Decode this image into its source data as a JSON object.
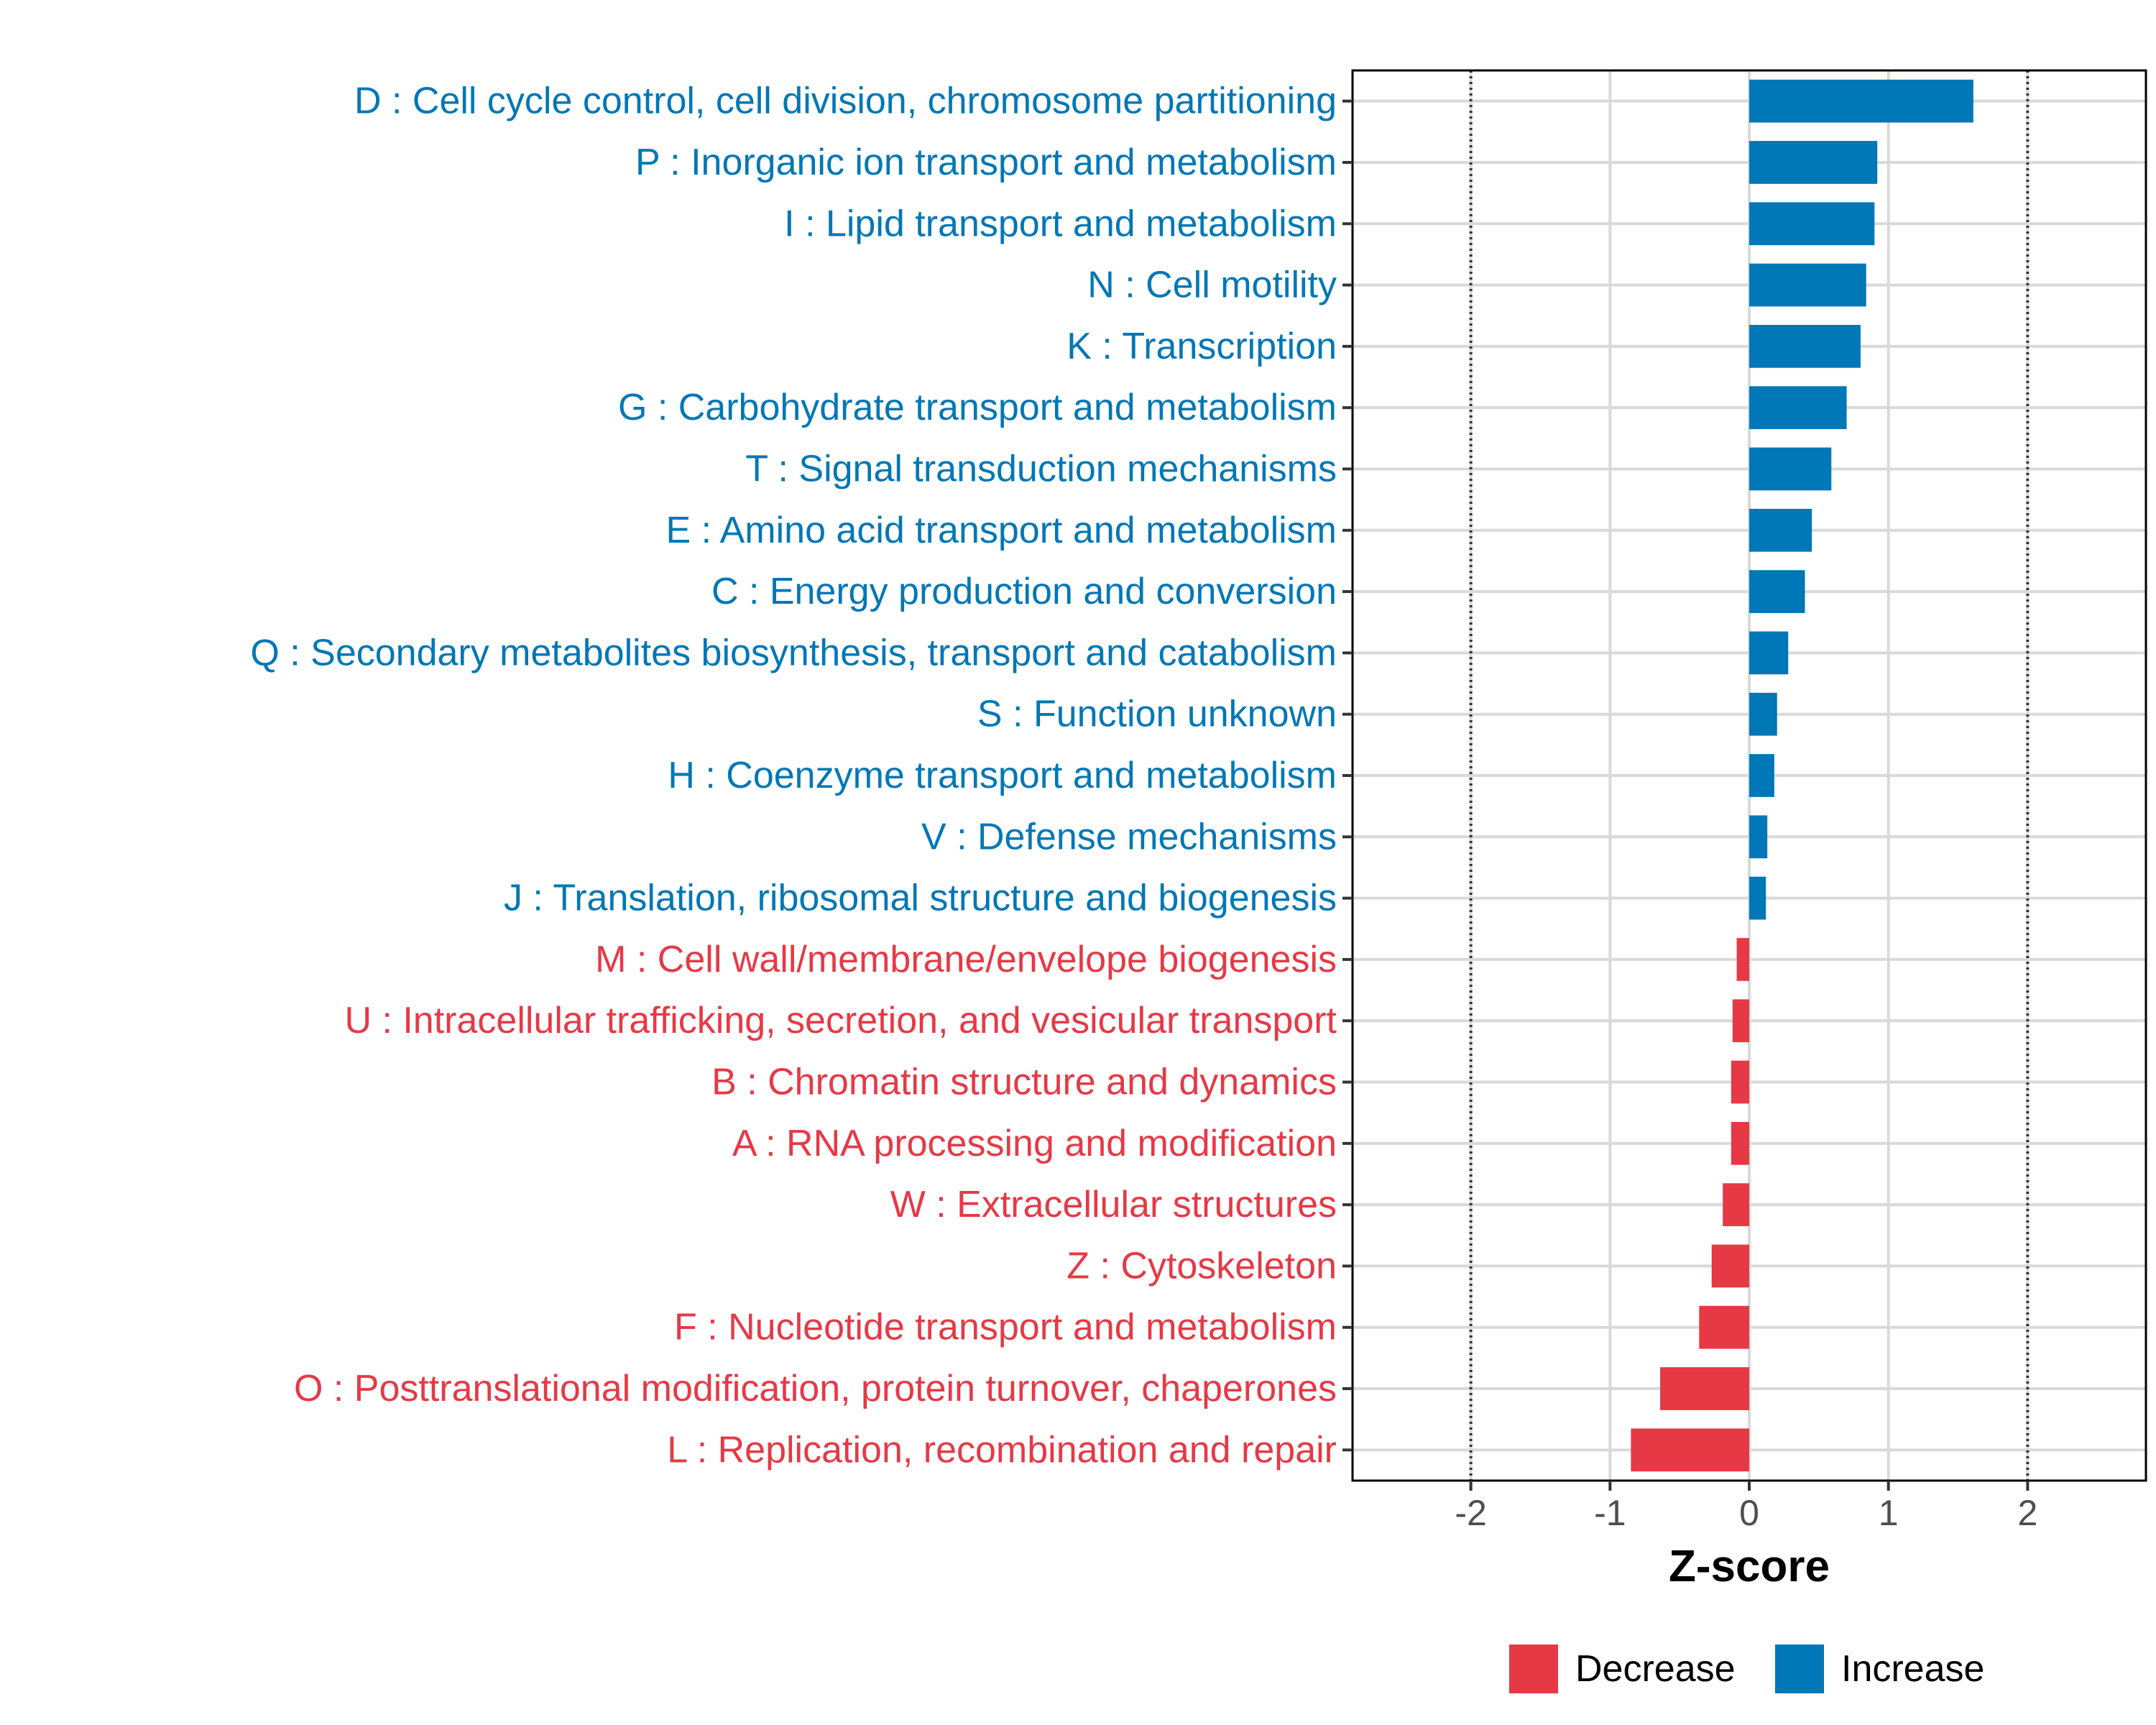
{
  "chart_data": {
    "type": "bar",
    "orientation": "horizontal",
    "xlabel": "Z-score",
    "xlim": [
      -2.85,
      2.85
    ],
    "xticks": [
      -2,
      -1,
      0,
      1,
      2
    ],
    "xtick_labels": [
      "-2",
      "-1",
      "0",
      "1",
      "2"
    ],
    "reference_lines": [
      -2,
      2
    ],
    "grid": true,
    "legend_position": "bottom",
    "colors": {
      "Decrease": "#e63946",
      "Increase": "#0077b6"
    },
    "legend": [
      {
        "name": "Decrease",
        "color": "#e63946"
      },
      {
        "name": "Increase",
        "color": "#0077b6"
      }
    ],
    "categories": [
      {
        "label": "D : Cell cycle control, cell division, chromosome partitioning",
        "value": 1.61,
        "direction": "Increase"
      },
      {
        "label": "P : Inorganic ion transport and metabolism",
        "value": 0.92,
        "direction": "Increase"
      },
      {
        "label": "I : Lipid transport and metabolism",
        "value": 0.9,
        "direction": "Increase"
      },
      {
        "label": "N : Cell motility",
        "value": 0.84,
        "direction": "Increase"
      },
      {
        "label": "K : Transcription",
        "value": 0.8,
        "direction": "Increase"
      },
      {
        "label": "G : Carbohydrate transport and metabolism",
        "value": 0.7,
        "direction": "Increase"
      },
      {
        "label": "T : Signal transduction mechanisms",
        "value": 0.59,
        "direction": "Increase"
      },
      {
        "label": "E : Amino acid transport and metabolism",
        "value": 0.45,
        "direction": "Increase"
      },
      {
        "label": "C : Energy production and conversion",
        "value": 0.4,
        "direction": "Increase"
      },
      {
        "label": "Q : Secondary metabolites biosynthesis, transport and catabolism",
        "value": 0.28,
        "direction": "Increase"
      },
      {
        "label": "S : Function unknown",
        "value": 0.2,
        "direction": "Increase"
      },
      {
        "label": "H : Coenzyme transport and metabolism",
        "value": 0.18,
        "direction": "Increase"
      },
      {
        "label": "V : Defense mechanisms",
        "value": 0.13,
        "direction": "Increase"
      },
      {
        "label": "J : Translation, ribosomal structure and biogenesis",
        "value": 0.12,
        "direction": "Increase"
      },
      {
        "label": "M : Cell wall/membrane/envelope biogenesis",
        "value": -0.09,
        "direction": "Decrease"
      },
      {
        "label": "U : Intracellular trafficking, secretion, and vesicular transport",
        "value": -0.12,
        "direction": "Decrease"
      },
      {
        "label": "B : Chromatin structure and dynamics",
        "value": -0.13,
        "direction": "Decrease"
      },
      {
        "label": "A : RNA processing and modification",
        "value": -0.13,
        "direction": "Decrease"
      },
      {
        "label": "W : Extracellular structures",
        "value": -0.19,
        "direction": "Decrease"
      },
      {
        "label": "Z : Cytoskeleton",
        "value": -0.27,
        "direction": "Decrease"
      },
      {
        "label": "F : Nucleotide transport and metabolism",
        "value": -0.36,
        "direction": "Decrease"
      },
      {
        "label": "O : Posttranslational modification, protein turnover, chaperones",
        "value": -0.64,
        "direction": "Decrease"
      },
      {
        "label": "L : Replication, recombination and repair",
        "value": -0.85,
        "direction": "Decrease"
      }
    ]
  }
}
